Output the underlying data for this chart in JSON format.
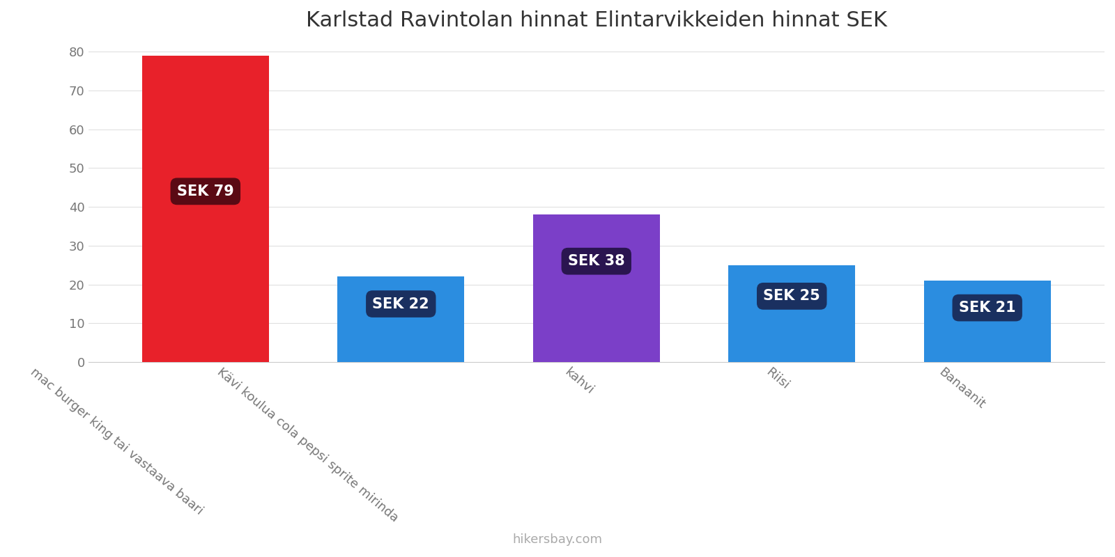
{
  "title": "Karlstad Ravintolan hinnat Elintarvikkeiden hinnat SEK",
  "categories": [
    "mac burger king tai vastaava baari",
    "Kävi koulua cola pepsi sprite mirinda",
    "kahvi",
    "Riisi",
    "Banaanit"
  ],
  "values": [
    79,
    22,
    38,
    25,
    21
  ],
  "bar_colors": [
    "#e8212a",
    "#2b8de0",
    "#7b3fc8",
    "#2b8de0",
    "#2b8de0"
  ],
  "label_texts": [
    "SEK 79",
    "SEK 22",
    "SEK 38",
    "SEK 25",
    "SEK 21"
  ],
  "label_box_colors": [
    "#5a0a14",
    "#1a3060",
    "#2a1550",
    "#1a3060",
    "#1a3060"
  ],
  "label_y_positions": [
    44,
    15,
    26,
    17,
    14
  ],
  "ylim": [
    0,
    82
  ],
  "yticks": [
    0,
    10,
    20,
    30,
    40,
    50,
    60,
    70,
    80
  ],
  "title_fontsize": 22,
  "tick_label_fontsize": 13,
  "watermark": "hikersbay.com",
  "background_color": "#ffffff",
  "grid_color": "#e0e0e0",
  "bar_width": 0.65
}
